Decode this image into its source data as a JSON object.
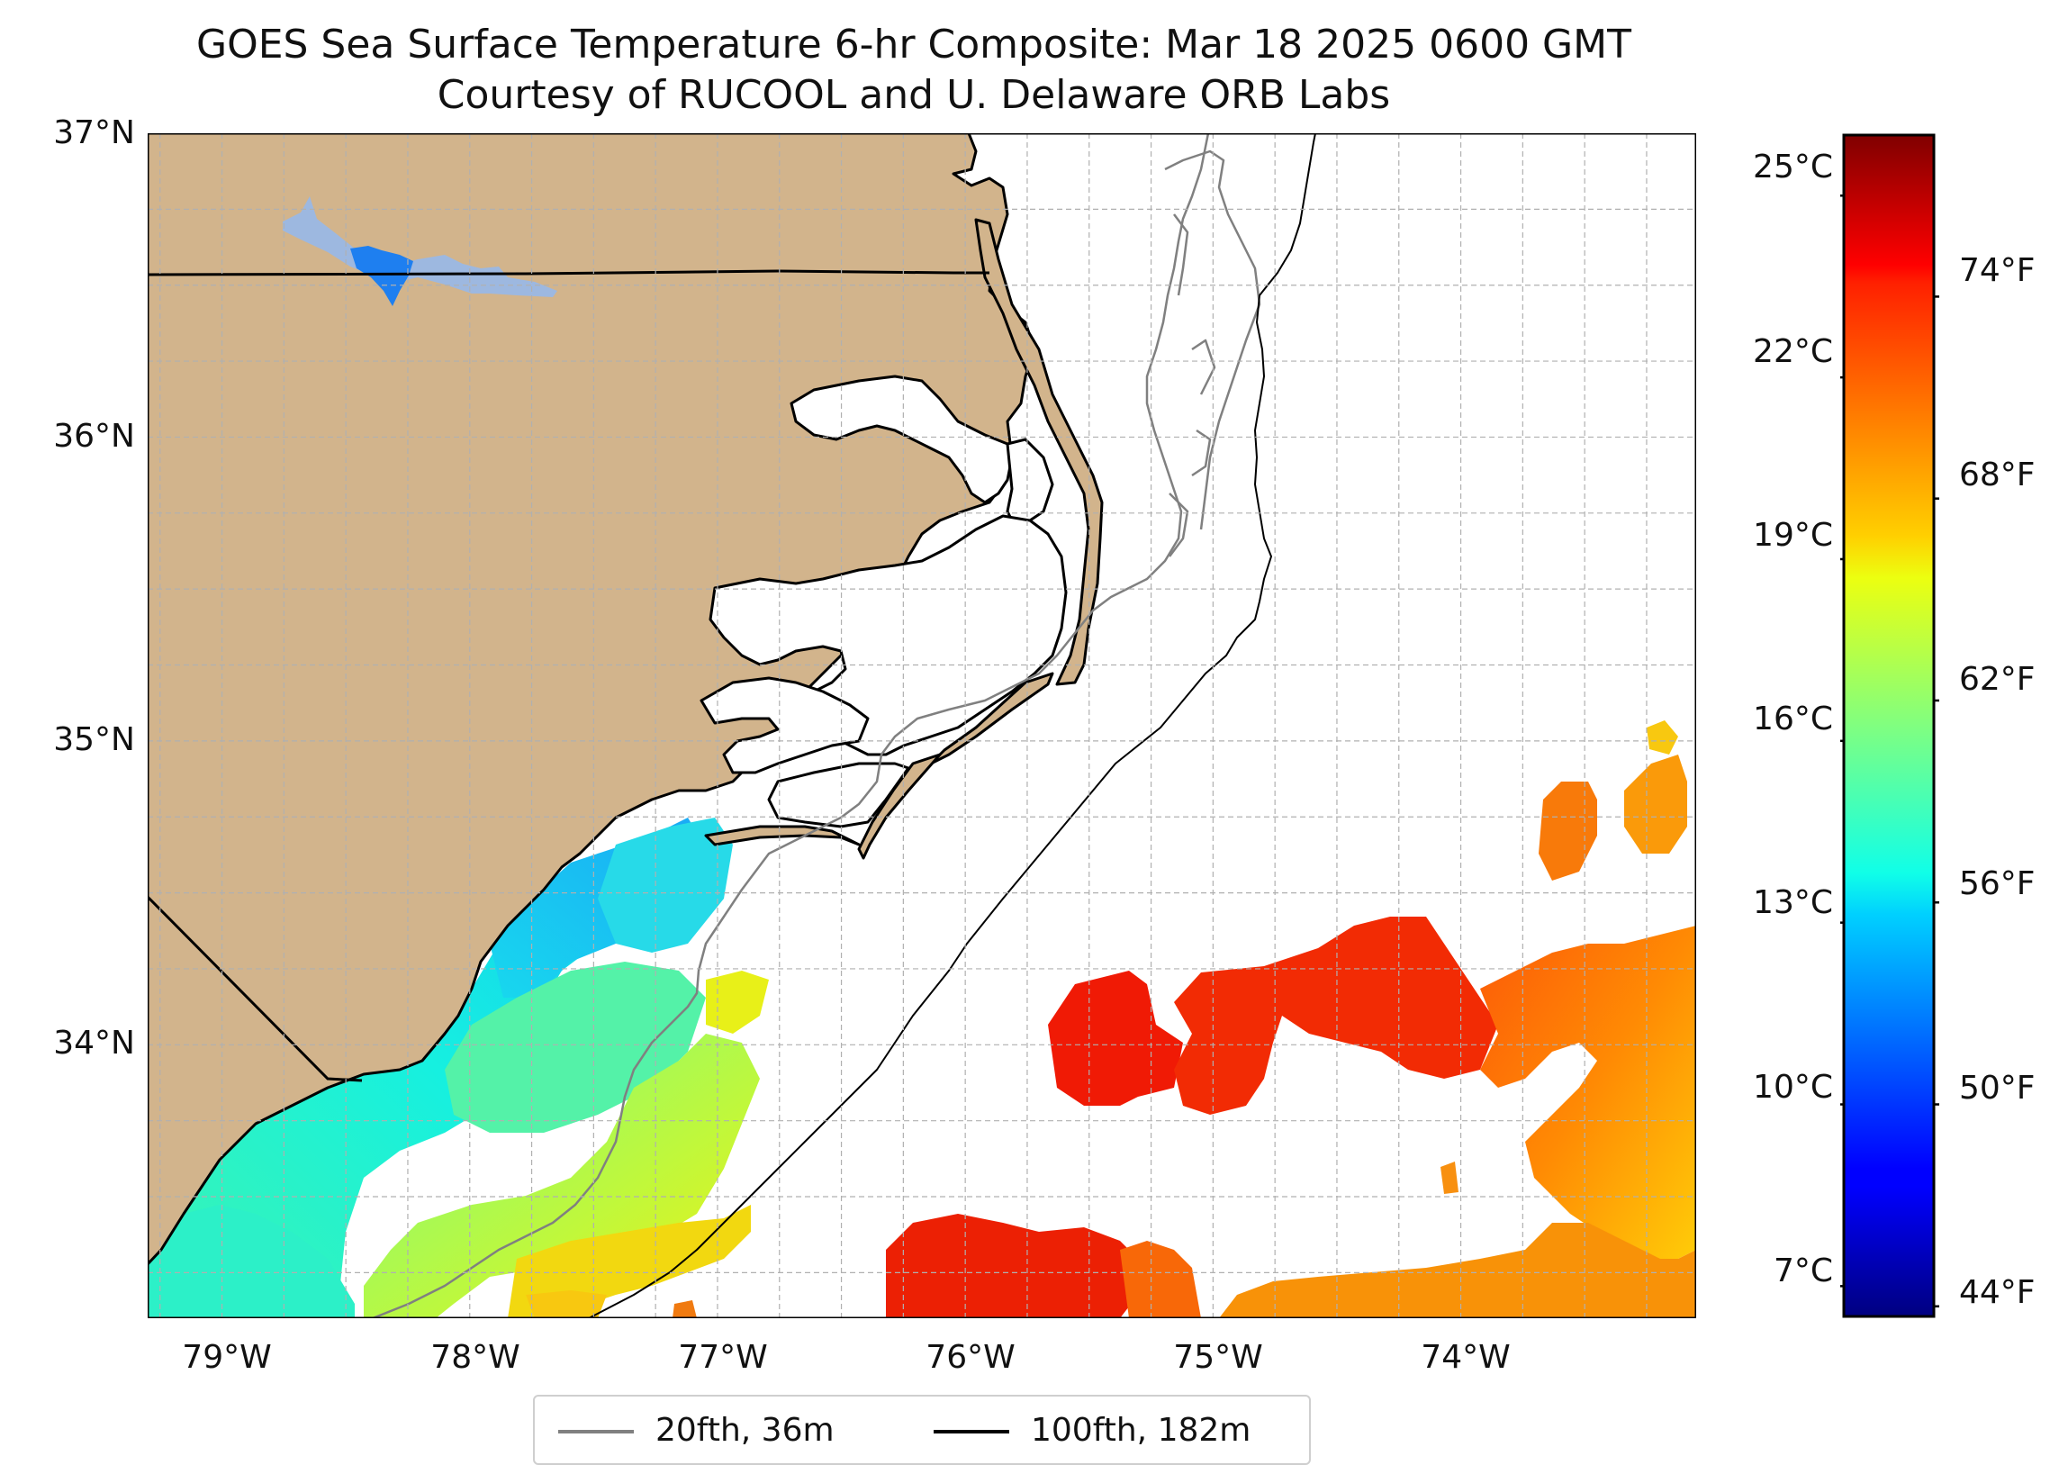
{
  "map": {
    "title": "GOES Sea Surface Temperature 6-hr Composite: Mar 18 2025 0600 GMT",
    "subtitle": "Courtesy of RUCOOL and U. Delaware ORB Labs",
    "lat_labels": [
      "37°N",
      "36°N",
      "35°N",
      "34°N"
    ],
    "lon_labels": [
      "79°W",
      "78°W",
      "77°W",
      "76°W",
      "75°W",
      "74°W"
    ],
    "lat_range": [
      33.1,
      37.0
    ],
    "lon_range": [
      -79.3,
      -73.05
    ],
    "colors": {
      "land": "#d2b48c",
      "coast": "#000000",
      "isobath_20": "#808080",
      "isobath_100": "#000000",
      "lake_light": "#9db8e0",
      "lake_dark": "#1e7ff0",
      "grid": "#b0b0b0"
    }
  },
  "colorbar": {
    "cmap": "jet",
    "range_c": [
      6.5,
      26.0
    ],
    "celsius_ticks": [
      "25°C",
      "22°C",
      "19°C",
      "16°C",
      "13°C",
      "10°C",
      "7°C"
    ],
    "fahrenheit_ticks": [
      "74°F",
      "68°F",
      "62°F",
      "56°F",
      "50°F",
      "44°F"
    ]
  },
  "legend": {
    "items": [
      {
        "label": "20fth, 36m",
        "color": "#808080"
      },
      {
        "label": "100fth, 182m",
        "color": "#000000"
      }
    ]
  }
}
